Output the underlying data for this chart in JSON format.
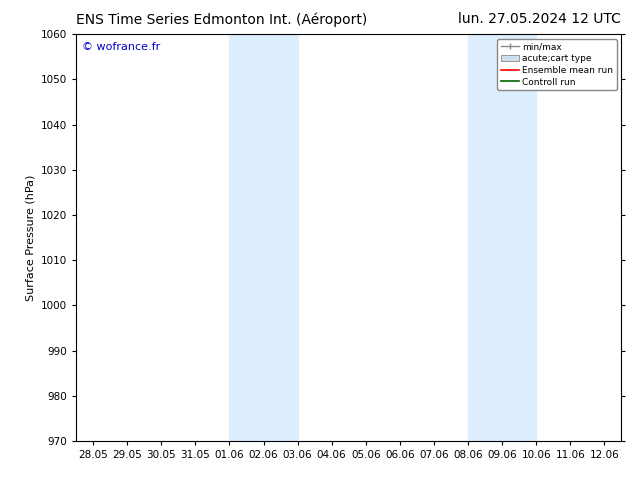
{
  "title_left": "ENS Time Series Edmonton Int. (Aéroport)",
  "title_right": "lun. 27.05.2024 12 UTC",
  "ylabel": "Surface Pressure (hPa)",
  "ylim": [
    970,
    1060
  ],
  "yticks": [
    970,
    980,
    990,
    1000,
    1010,
    1020,
    1030,
    1040,
    1050,
    1060
  ],
  "xtick_labels": [
    "28.05",
    "29.05",
    "30.05",
    "31.05",
    "01.06",
    "02.06",
    "03.06",
    "04.06",
    "05.06",
    "06.06",
    "07.06",
    "08.06",
    "09.06",
    "10.06",
    "11.06",
    "12.06"
  ],
  "shaded_regions": [
    {
      "xstart": 4,
      "xend": 6,
      "color": "#ddeeff"
    },
    {
      "xstart": 11,
      "xend": 13,
      "color": "#ddeeff"
    }
  ],
  "watermark": "© wofrance.fr",
  "watermark_color": "#0000cc",
  "background_color": "#ffffff",
  "legend_items": [
    {
      "label": "min/max",
      "color": "#aaaaaa",
      "type": "errorbar"
    },
    {
      "label": "acute;cart type",
      "color": "#ccddee",
      "type": "box"
    },
    {
      "label": "Ensemble mean run",
      "color": "#ff0000",
      "type": "line"
    },
    {
      "label": "Controll run",
      "color": "#008000",
      "type": "line"
    }
  ],
  "shade_color": "#ddeeff",
  "title_fontsize": 10,
  "tick_fontsize": 7.5,
  "ylabel_fontsize": 8,
  "watermark_fontsize": 8,
  "legend_fontsize": 6.5
}
